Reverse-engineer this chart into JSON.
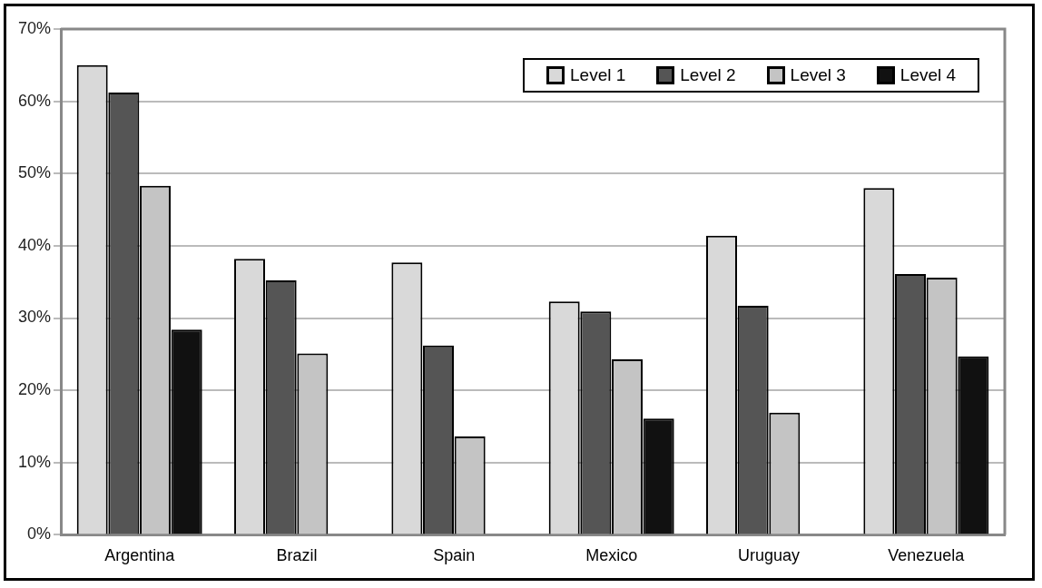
{
  "chart_data": {
    "type": "bar",
    "categories": [
      "Argentina",
      "Brazil",
      "Spain",
      "Mexico",
      "Uruguay",
      "Venezuela"
    ],
    "series": [
      {
        "name": "Level 1",
        "color": "#d9d9d9",
        "values": [
          65,
          38.2,
          37.7,
          32.3,
          41.4,
          48
        ]
      },
      {
        "name": "Level 2",
        "color": "#555555",
        "values": [
          61.2,
          35.2,
          26.2,
          30.9,
          31.7,
          36.1
        ]
      },
      {
        "name": "Level 3",
        "color": "#c4c4c4",
        "values": [
          48.3,
          25.1,
          13.6,
          24.3,
          16.9,
          35.6
        ]
      },
      {
        "name": "Level 4",
        "color": "#111111",
        "values": [
          28.4,
          null,
          null,
          16.1,
          null,
          24.7
        ]
      }
    ],
    "ylim": [
      0,
      70
    ],
    "yticks": [
      {
        "value": 0,
        "label": "0%"
      },
      {
        "value": 10,
        "label": "10%"
      },
      {
        "value": 20,
        "label": "20%"
      },
      {
        "value": 30,
        "label": "30%"
      },
      {
        "value": 40,
        "label": "40%"
      },
      {
        "value": 50,
        "label": "50%"
      },
      {
        "value": 60,
        "label": "60%"
      },
      {
        "value": 70,
        "label": "70%"
      }
    ],
    "grid": "y",
    "legend": "top right"
  }
}
